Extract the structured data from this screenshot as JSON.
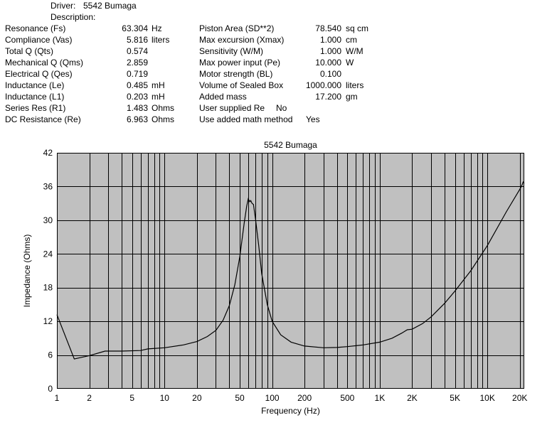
{
  "header": {
    "driver_label": "Driver:",
    "driver_value": "5542 Bumaga",
    "description_label": "Description:"
  },
  "params_left": [
    {
      "label": "Resonance (Fs)",
      "value": "63.304",
      "unit": "Hz"
    },
    {
      "label": "Compliance (Vas)",
      "value": "5.816",
      "unit": "liters"
    },
    {
      "label": "Total Q (Qts)",
      "value": "0.574",
      "unit": ""
    },
    {
      "label": "Mechanical Q (Qms)",
      "value": "2.859",
      "unit": ""
    },
    {
      "label": "Electrical Q (Qes)",
      "value": "0.719",
      "unit": ""
    },
    {
      "label": "Inductance (Le)",
      "value": "0.485",
      "unit": "mH"
    },
    {
      "label": "Inductance (L1)",
      "value": "0.203",
      "unit": "mH"
    },
    {
      "label": "Series Res (R1)",
      "value": "1.483",
      "unit": "Ohms"
    },
    {
      "label": "DC Resistance (Re)",
      "value": "6.963",
      "unit": "Ohms"
    }
  ],
  "params_right": [
    {
      "label": "Piston Area (SD**2)",
      "value": "78.540",
      "unit": "sq cm"
    },
    {
      "label": "Max excursion (Xmax)",
      "value": "1.000",
      "unit": "cm"
    },
    {
      "label": "Sensitivity (W/M)",
      "value": "1.000",
      "unit": "W/M"
    },
    {
      "label": "Max power input (Pe)",
      "value": "10.000",
      "unit": "W"
    },
    {
      "label": "Motor strength (BL)",
      "value": "0.100",
      "unit": ""
    },
    {
      "label": "Volume of Sealed Box",
      "value": "1000.000",
      "unit": "liters"
    },
    {
      "label": "Added mass",
      "value": "17.200",
      "unit": "gm"
    }
  ],
  "flags": [
    {
      "label": "User supplied Re",
      "value": "No"
    },
    {
      "label": "Use added math method",
      "value": "Yes"
    }
  ],
  "chart_data": {
    "type": "line",
    "title": "5542 Bumaga",
    "xlabel": "Frequency (Hz)",
    "ylabel": "Impedance (Ohms)",
    "x_scale": "log",
    "xlim": [
      1,
      22000
    ],
    "ylim": [
      0,
      42
    ],
    "x_ticks": [
      {
        "value": 1,
        "label": "1"
      },
      {
        "value": 2,
        "label": "2"
      },
      {
        "value": 5,
        "label": "5"
      },
      {
        "value": 10,
        "label": "10"
      },
      {
        "value": 20,
        "label": "20"
      },
      {
        "value": 50,
        "label": "50"
      },
      {
        "value": 100,
        "label": "100"
      },
      {
        "value": 200,
        "label": "200"
      },
      {
        "value": 500,
        "label": "500"
      },
      {
        "value": 1000,
        "label": "1K"
      },
      {
        "value": 2000,
        "label": "2K"
      },
      {
        "value": 5000,
        "label": "5K"
      },
      {
        "value": 10000,
        "label": "10K"
      },
      {
        "value": 20000,
        "label": "20K"
      }
    ],
    "y_ticks": [
      {
        "value": 0,
        "label": "0"
      },
      {
        "value": 6,
        "label": "6"
      },
      {
        "value": 12,
        "label": "12"
      },
      {
        "value": 18,
        "label": "18"
      },
      {
        "value": 24,
        "label": "24"
      },
      {
        "value": 30,
        "label": "30"
      },
      {
        "value": 36,
        "label": "36"
      },
      {
        "value": 42,
        "label": "42"
      }
    ],
    "grid": true,
    "plot_background": "#c0c0c0",
    "line_color": "#000000",
    "series": [
      {
        "x": [
          1,
          1.45,
          2,
          2.8,
          4,
          6,
          7,
          10,
          15,
          20,
          25,
          30,
          35,
          40,
          45,
          50,
          55,
          58,
          60,
          62,
          63.3,
          65,
          67,
          70,
          75,
          80,
          90,
          100,
          120,
          150,
          200,
          300,
          400,
          500,
          700,
          1000,
          1300,
          1600,
          1800,
          2000,
          2500,
          3000,
          4000,
          5000,
          7000,
          10000,
          15000,
          20000,
          21000,
          21500,
          22000
        ],
        "y": [
          13.2,
          5.3,
          5.9,
          6.7,
          6.7,
          6.8,
          7.1,
          7.3,
          7.8,
          8.4,
          9.3,
          10.4,
          12.2,
          14.8,
          18.5,
          23.5,
          29.5,
          32.5,
          33.8,
          33.3,
          33.5,
          33.0,
          32.8,
          30.2,
          25.5,
          20.5,
          15.0,
          12.0,
          9.6,
          8.3,
          7.6,
          7.3,
          7.35,
          7.5,
          7.8,
          8.3,
          9.0,
          9.9,
          10.5,
          10.6,
          11.6,
          12.8,
          15.2,
          17.4,
          21.0,
          25.5,
          31.5,
          35.5,
          36.3,
          36.8,
          36.6
        ]
      }
    ]
  }
}
